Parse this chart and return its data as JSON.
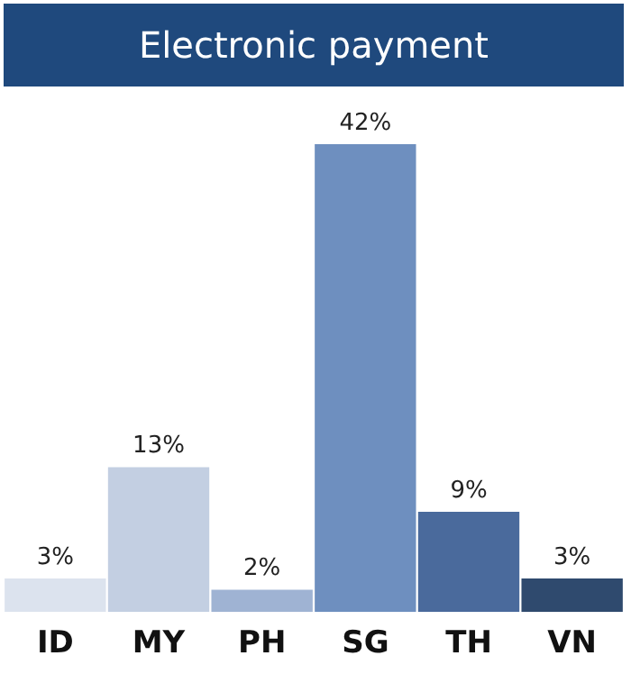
{
  "chart_data": {
    "type": "bar",
    "title": "Electronic payment",
    "categories": [
      "ID",
      "MY",
      "PH",
      "SG",
      "TH",
      "VN"
    ],
    "values": [
      3,
      13,
      2,
      42,
      9,
      3
    ],
    "value_labels": [
      "3%",
      "13%",
      "2%",
      "42%",
      "9%",
      "3%"
    ],
    "colors": [
      "#dce3ee",
      "#c3cfe2",
      "#9fb3d3",
      "#6e8fbf",
      "#4a6a9c",
      "#2f4a6e"
    ],
    "grid": false,
    "legend": false
  }
}
